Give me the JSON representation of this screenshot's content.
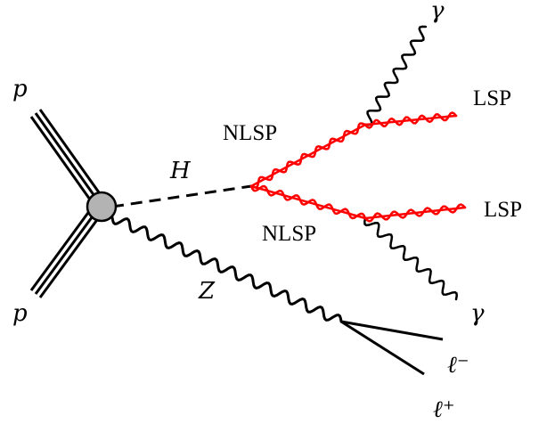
{
  "particles": {
    "proton_top": "p",
    "proton_bottom": "p",
    "higgs": "H",
    "z_boson": "Z",
    "nlsp_upper": "NLSP",
    "nlsp_lower": "NLSP",
    "lsp_upper": "LSP",
    "lsp_lower": "LSP",
    "photon_upper": "γ",
    "photon_lower": "γ",
    "lepton_minus": "ℓ⁻",
    "lepton_plus": "ℓ⁺"
  },
  "colors": {
    "standard_model": "#000000",
    "susy": "#ff0000",
    "vertex_fill": "#b3b3b3"
  }
}
